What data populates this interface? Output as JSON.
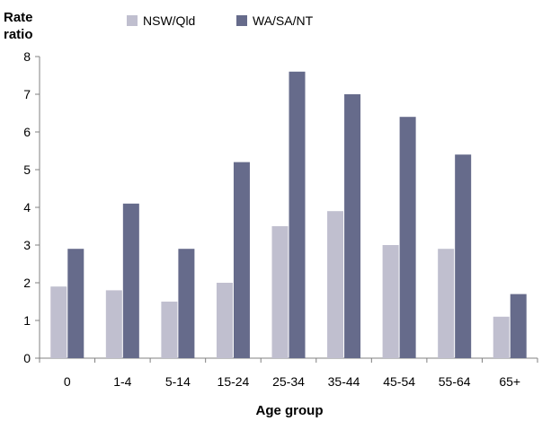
{
  "chart_data": {
    "type": "bar",
    "title": "",
    "ylabel_line1": "Rate",
    "ylabel_line2": "ratio",
    "xlabel": "Age group",
    "categories": [
      "0",
      "1-4",
      "5-14",
      "15-24",
      "25-34",
      "35-44",
      "45-54",
      "55-64",
      "65+"
    ],
    "series": [
      {
        "name": "NSW/Qld",
        "color": "#c0bfcf",
        "values": [
          1.9,
          1.8,
          1.5,
          2.0,
          3.5,
          3.9,
          3.0,
          2.9,
          1.1
        ]
      },
      {
        "name": "WA/SA/NT",
        "color": "#666b8b",
        "values": [
          2.9,
          4.1,
          2.9,
          5.2,
          7.6,
          7.0,
          6.4,
          5.4,
          1.7
        ]
      }
    ],
    "ylim": [
      0,
      8
    ],
    "yticks": [
      0,
      1,
      2,
      3,
      4,
      5,
      6,
      7,
      8
    ],
    "grid": false,
    "legend_position": "top"
  }
}
